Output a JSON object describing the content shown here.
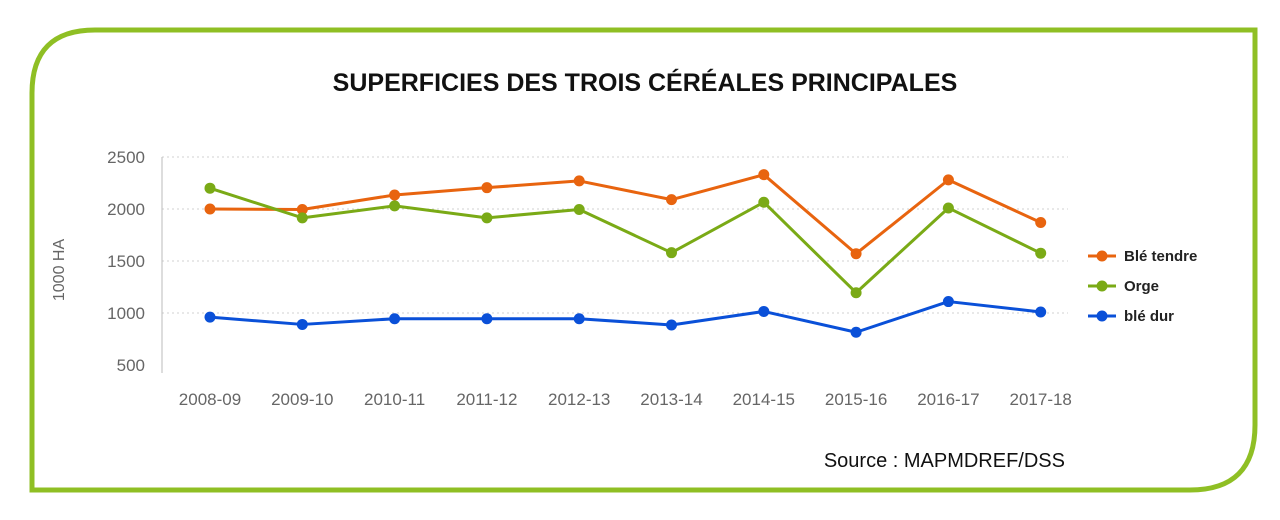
{
  "colors": {
    "frame": "#8fbf24",
    "ble_tendre": "#e8640f",
    "orge": "#7aaa16",
    "ble_dur": "#0a50d8"
  },
  "chart_data": {
    "type": "line",
    "title": "SUPERFICIES DES TROIS CÉRÉALES PRINCIPALES",
    "xlabel": "",
    "ylabel": "1000 HA",
    "categories": [
      "2008-09",
      "2009-10",
      "2010-11",
      "2011-12",
      "2012-13",
      "2013-14",
      "2014-15",
      "2015-16",
      "2016-17",
      "2017-18"
    ],
    "ylim": [
      500,
      2500
    ],
    "yticks": [
      2500,
      2000,
      1500,
      1000,
      500
    ],
    "grid": true,
    "legend": "right",
    "series": [
      {
        "name": "Blé tendre",
        "color_key": "ble_tendre",
        "values": [
          2000,
          1995,
          2135,
          2205,
          2270,
          2090,
          2330,
          1570,
          2280,
          1870
        ]
      },
      {
        "name": "Orge",
        "color_key": "orge",
        "values": [
          2200,
          1915,
          2030,
          1915,
          1995,
          1580,
          2065,
          1195,
          2010,
          1575
        ]
      },
      {
        "name": "blé dur",
        "color_key": "ble_dur",
        "values": [
          960,
          890,
          945,
          945,
          945,
          885,
          1015,
          815,
          1110,
          1010
        ]
      }
    ]
  },
  "source": "Source : MAPMDREF/DSS"
}
